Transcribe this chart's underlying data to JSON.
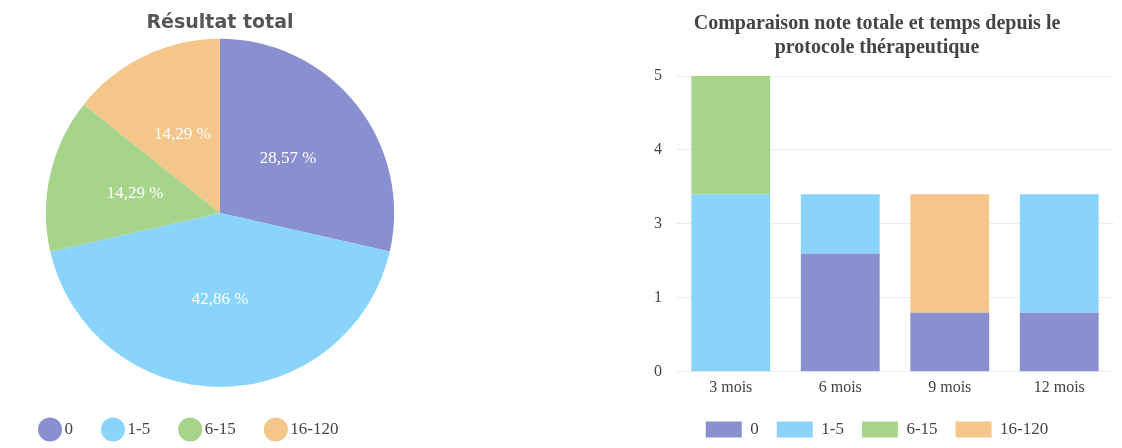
{
  "chart_data": [
    {
      "type": "pie",
      "title": "Résultat total",
      "categories": [
        "0",
        "1-5",
        "6-15",
        "16-120"
      ],
      "values": [
        28.57,
        42.86,
        14.29,
        14.29
      ],
      "colors": [
        "#8a8fd0",
        "#8ad4fb",
        "#a6d48a",
        "#f4c68a"
      ],
      "value_labels": [
        "28,57 %",
        "42,86 %",
        "14,29 %",
        "14,29 %"
      ],
      "legend": "bottom"
    },
    {
      "type": "bar",
      "title": "Comparaison note totale et temps depuis le protocole thérapeutique",
      "categories": [
        "3 mois",
        "6 mois",
        "9 mois",
        "12 mois"
      ],
      "stacked": true,
      "series": [
        {
          "name": "0",
          "color": "#8a8fd0",
          "values": [
            0,
            2,
            1,
            1
          ]
        },
        {
          "name": "1-5",
          "color": "#8ad4fb",
          "values": [
            3,
            1,
            0,
            2
          ]
        },
        {
          "name": "6-15",
          "color": "#a6d48a",
          "values": [
            2,
            0,
            0,
            0
          ]
        },
        {
          "name": "16-120",
          "color": "#f4c68a",
          "values": [
            0,
            0,
            2,
            0
          ]
        }
      ],
      "ylim": [
        0,
        5
      ],
      "yticks": [
        0,
        {
          "value": 1.25,
          "label": "1"
        },
        {
          "value": 2.5,
          "label": "3"
        },
        {
          "value": 3.75,
          "label": "4"
        },
        5
      ],
      "grid": "y",
      "legend": "bottom"
    }
  ]
}
